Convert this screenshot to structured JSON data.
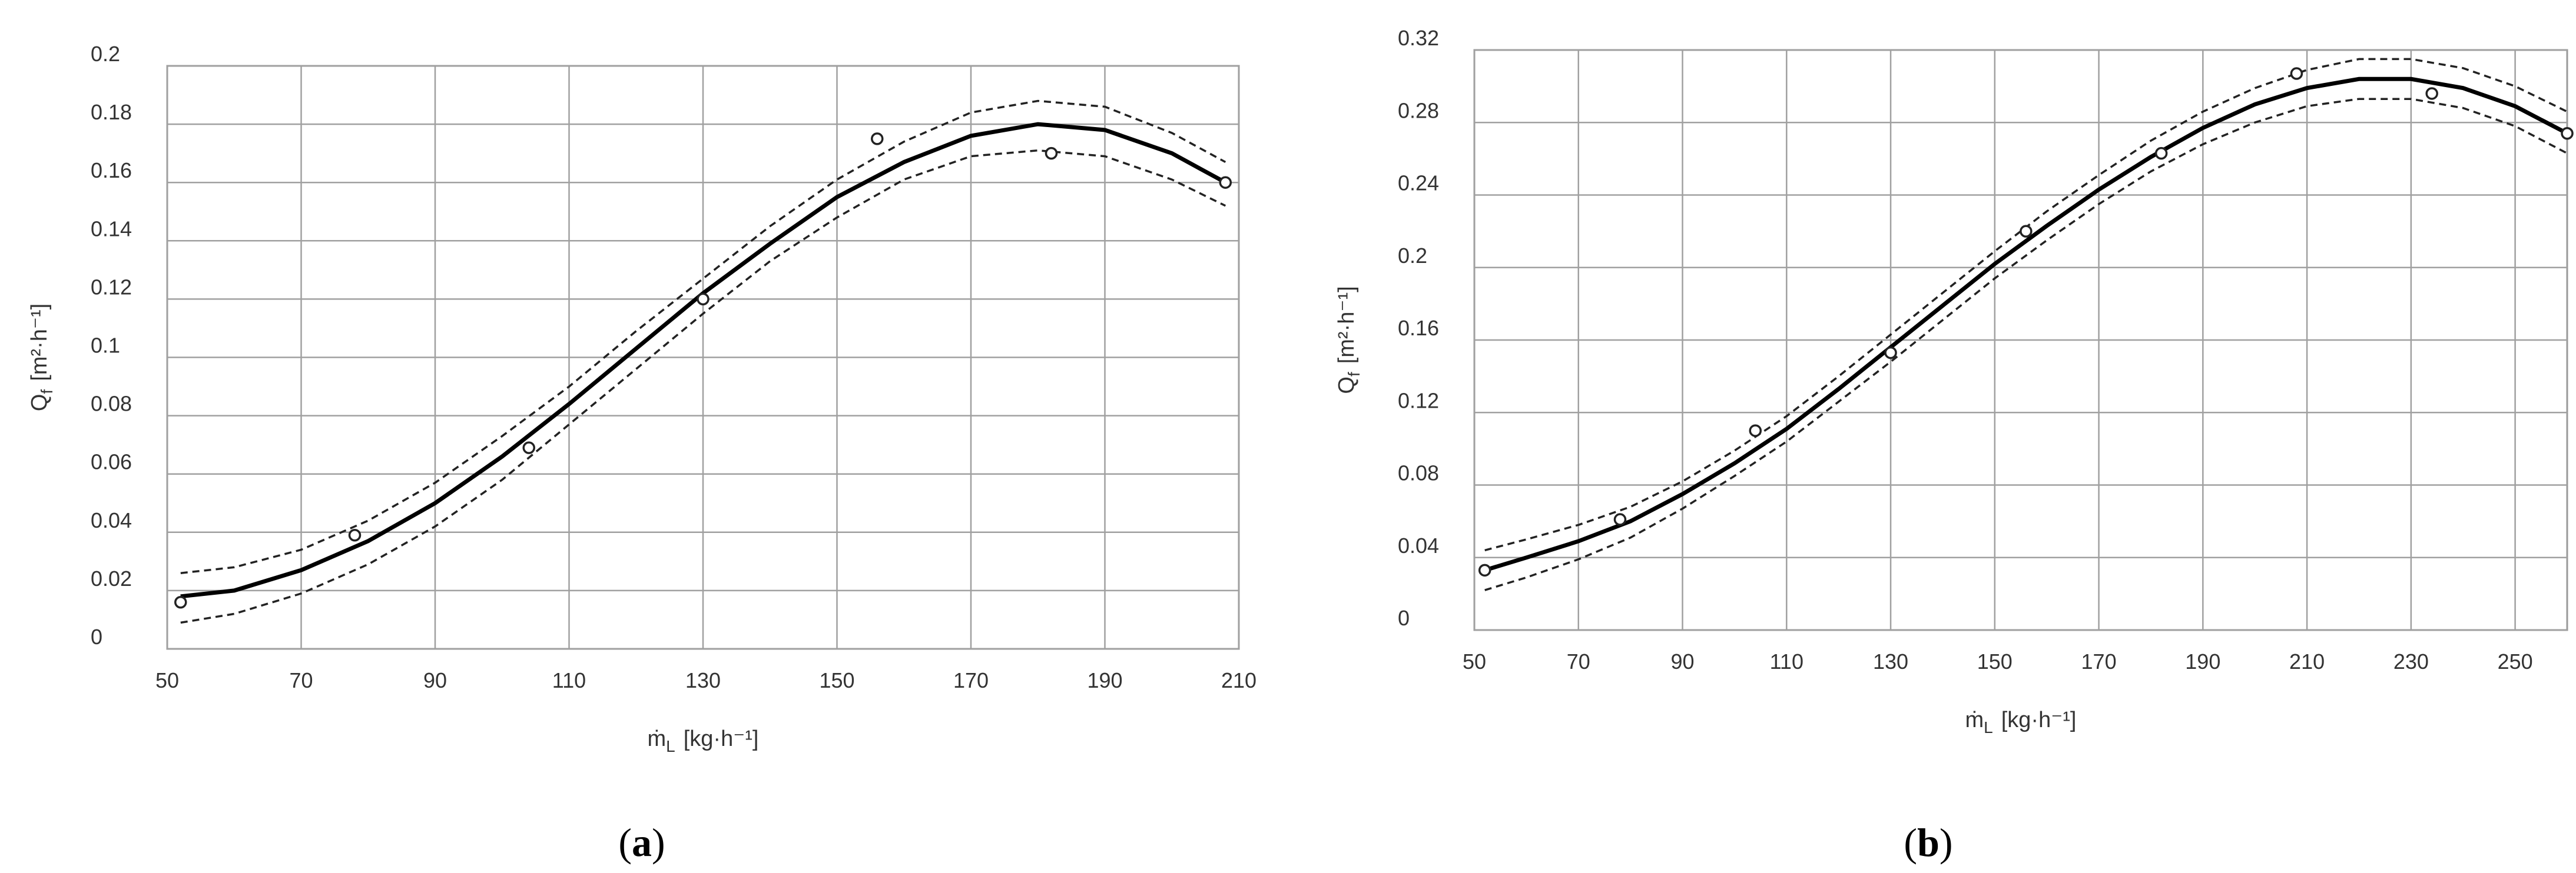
{
  "chart_data": [
    {
      "panel_label": "a",
      "type": "line",
      "xlabel_main": "ṁ",
      "xlabel_sub": "L",
      "xlabel_unit": "[kg·h⁻¹]",
      "ylabel_main": "Q",
      "ylabel_sub": "f",
      "ylabel_unit": "[m²·h⁻¹]",
      "xlim": [
        50,
        210
      ],
      "ylim": [
        0,
        0.2
      ],
      "x_ticks": [
        50,
        70,
        90,
        110,
        130,
        150,
        170,
        190,
        210
      ],
      "y_ticks": [
        0,
        0.02,
        0.04,
        0.06,
        0.08,
        0.1,
        0.12,
        0.14,
        0.16,
        0.18,
        0.2
      ],
      "x_tick_labels": [
        "50",
        "70",
        "90",
        "110",
        "130",
        "150",
        "170",
        "190",
        "210"
      ],
      "y_tick_labels": [
        "0",
        "0.02",
        "0.04",
        "0.06",
        "0.08",
        "0.1",
        "0.12",
        "0.14",
        "0.16",
        "0.18",
        "0.2"
      ],
      "grid": true,
      "points": {
        "x": [
          52,
          78,
          104,
          130,
          156,
          182,
          208
        ],
        "y": [
          0.016,
          0.039,
          0.069,
          0.12,
          0.175,
          0.17,
          0.16
        ]
      },
      "fit": {
        "x": [
          52,
          60,
          70,
          80,
          90,
          100,
          110,
          120,
          130,
          140,
          150,
          160,
          170,
          180,
          190,
          200,
          208
        ],
        "y": [
          0.018,
          0.02,
          0.027,
          0.037,
          0.05,
          0.066,
          0.084,
          0.103,
          0.122,
          0.139,
          0.155,
          0.167,
          0.176,
          0.18,
          0.178,
          0.17,
          0.16
        ]
      },
      "band_upper": {
        "x": [
          52,
          60,
          70,
          80,
          90,
          100,
          110,
          120,
          130,
          140,
          150,
          160,
          170,
          180,
          190,
          200,
          208
        ],
        "y": [
          0.026,
          0.028,
          0.034,
          0.044,
          0.057,
          0.073,
          0.09,
          0.109,
          0.127,
          0.145,
          0.161,
          0.174,
          0.184,
          0.188,
          0.186,
          0.177,
          0.167
        ]
      },
      "band_lower": {
        "x": [
          52,
          60,
          70,
          80,
          90,
          100,
          110,
          120,
          130,
          140,
          150,
          160,
          170,
          180,
          190,
          200,
          208
        ],
        "y": [
          0.009,
          0.012,
          0.019,
          0.029,
          0.042,
          0.058,
          0.077,
          0.096,
          0.115,
          0.133,
          0.148,
          0.161,
          0.169,
          0.171,
          0.169,
          0.161,
          0.152
        ]
      }
    },
    {
      "panel_label": "b",
      "type": "line",
      "xlabel_main": "ṁ",
      "xlabel_sub": "L",
      "xlabel_unit": "[kg·h⁻¹]",
      "ylabel_main": "Q",
      "ylabel_sub": "f",
      "ylabel_unit": "[m²·h⁻¹]",
      "xlim": [
        50,
        260
      ],
      "ylim": [
        0,
        0.32
      ],
      "x_ticks": [
        50,
        70,
        90,
        110,
        130,
        150,
        170,
        190,
        210,
        230,
        250
      ],
      "y_ticks": [
        0,
        0.04,
        0.08,
        0.12,
        0.16,
        0.2,
        0.24,
        0.28,
        0.32
      ],
      "x_tick_labels": [
        "50",
        "70",
        "90",
        "110",
        "130",
        "150",
        "170",
        "190",
        "210",
        "230",
        "250"
      ],
      "y_tick_labels": [
        "0",
        "0.04",
        "0.08",
        "0.12",
        "0.16",
        "0.2",
        "0.24",
        "0.28",
        "0.32"
      ],
      "grid": true,
      "points": {
        "x": [
          52,
          78,
          104,
          130,
          156,
          182,
          208,
          234,
          260
        ],
        "y": [
          0.033,
          0.061,
          0.11,
          0.153,
          0.22,
          0.263,
          0.307,
          0.296,
          0.274
        ]
      },
      "fit": {
        "x": [
          52,
          60,
          70,
          80,
          90,
          100,
          110,
          120,
          130,
          140,
          150,
          160,
          170,
          180,
          190,
          200,
          210,
          220,
          230,
          240,
          250,
          260
        ],
        "y": [
          0.033,
          0.04,
          0.049,
          0.06,
          0.075,
          0.092,
          0.111,
          0.133,
          0.156,
          0.179,
          0.202,
          0.223,
          0.243,
          0.261,
          0.277,
          0.29,
          0.299,
          0.304,
          0.304,
          0.299,
          0.289,
          0.274
        ]
      },
      "band_upper": {
        "x": [
          52,
          60,
          70,
          80,
          90,
          100,
          110,
          120,
          130,
          140,
          150,
          160,
          170,
          180,
          190,
          200,
          210,
          220,
          230,
          240,
          250,
          260
        ],
        "y": [
          0.044,
          0.05,
          0.058,
          0.068,
          0.082,
          0.099,
          0.118,
          0.14,
          0.163,
          0.186,
          0.209,
          0.231,
          0.251,
          0.27,
          0.286,
          0.299,
          0.309,
          0.315,
          0.315,
          0.31,
          0.3,
          0.286
        ]
      },
      "band_lower": {
        "x": [
          52,
          60,
          70,
          80,
          90,
          100,
          110,
          120,
          130,
          140,
          150,
          160,
          170,
          180,
          190,
          200,
          210,
          220,
          230,
          240,
          250,
          260
        ],
        "y": [
          0.022,
          0.029,
          0.039,
          0.051,
          0.067,
          0.085,
          0.104,
          0.126,
          0.148,
          0.171,
          0.194,
          0.215,
          0.235,
          0.253,
          0.268,
          0.28,
          0.289,
          0.293,
          0.293,
          0.288,
          0.278,
          0.263
        ]
      }
    }
  ]
}
